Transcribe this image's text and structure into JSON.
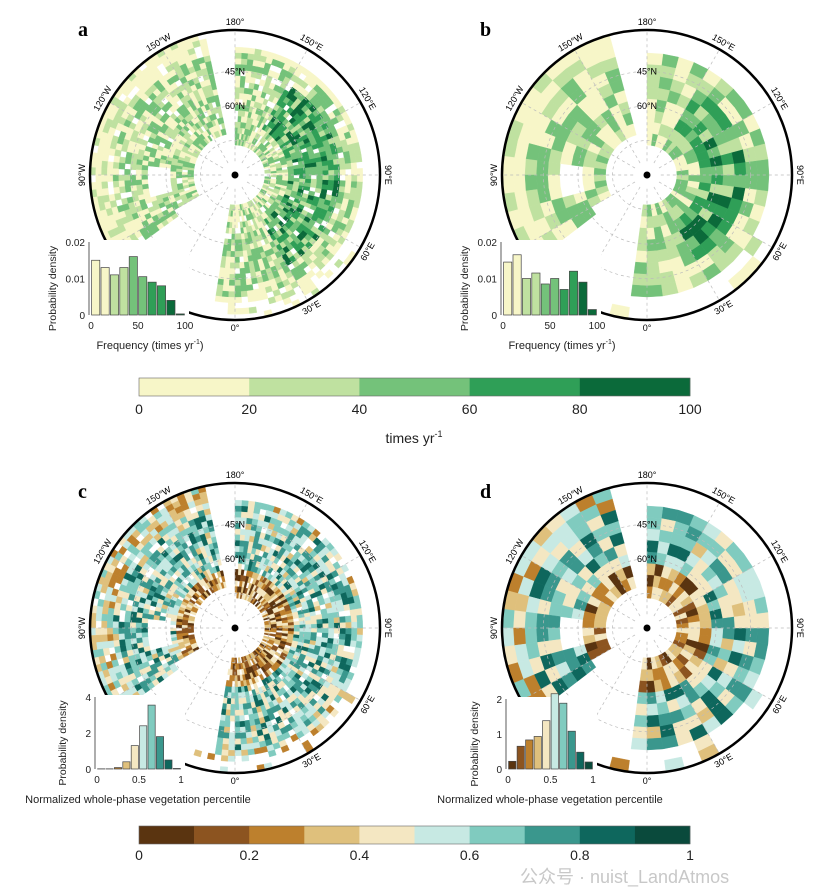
{
  "panels": {
    "a": "a",
    "b": "b",
    "c": "c",
    "d": "d"
  },
  "map_labels": {
    "lon": [
      "180°",
      "150°W",
      "150°E",
      "120°W",
      "120°E",
      "90°W",
      "90°E",
      "60°E",
      "30°E",
      "0°"
    ],
    "lat": [
      "45°N",
      "60°N"
    ]
  },
  "colors": {
    "green": [
      "#f7f6c8",
      "#bfe1a0",
      "#74c27a",
      "#2f9f57",
      "#0b6a3a"
    ],
    "brbg": [
      "#5a3410",
      "#8c5420",
      "#bd802d",
      "#dfc07c",
      "#f4e7c2",
      "#c7e9e3",
      "#80cbbf",
      "#3a978d",
      "#0e675d",
      "#0a4a3c"
    ]
  },
  "colorbar1": {
    "ticks": [
      "0",
      "20",
      "40",
      "60",
      "80",
      "100"
    ],
    "label": "times yr",
    "label_sup": "-1"
  },
  "colorbar2": {
    "ticks": [
      "0",
      "0.2",
      "0.4",
      "0.6",
      "0.8",
      "1"
    ]
  },
  "watermark": "公众号 · nuist_LandAtmos",
  "chart_data": [
    {
      "panel": "a",
      "type": "bar",
      "xlabel": "Frequency (times yr",
      "xlabel_sup": "-1",
      "xlabel_end": ")",
      "ylabel": "Probability density",
      "xticks": [
        "0",
        "50",
        "100"
      ],
      "yticks": [
        "0",
        "0.01",
        "0.02"
      ],
      "xlim": [
        0,
        100
      ],
      "ylim": [
        0,
        0.02
      ],
      "bin_width": 10,
      "bin_starts": [
        0,
        10,
        20,
        30,
        40,
        50,
        60,
        70,
        80,
        90
      ],
      "values": [
        0.015,
        0.013,
        0.011,
        0.013,
        0.016,
        0.0105,
        0.009,
        0.008,
        0.004,
        0.0003
      ]
    },
    {
      "panel": "b",
      "type": "bar",
      "xlabel": "Frequency (times yr",
      "xlabel_sup": "-1",
      "xlabel_end": ")",
      "ylabel": "Probability density",
      "xticks": [
        "0",
        "50",
        "100"
      ],
      "yticks": [
        "0",
        "0.01",
        "0.02"
      ],
      "xlim": [
        0,
        100
      ],
      "ylim": [
        0,
        0.02
      ],
      "bin_width": 10,
      "bin_starts": [
        0,
        10,
        20,
        30,
        40,
        50,
        60,
        70,
        80,
        90
      ],
      "values": [
        0.0145,
        0.0165,
        0.01,
        0.0115,
        0.0085,
        0.01,
        0.007,
        0.012,
        0.009,
        0.0015
      ]
    },
    {
      "panel": "c",
      "type": "bar",
      "xlabel": "Normalized whole-phase vegetation percentile",
      "ylabel": "Probability density",
      "xticks": [
        "0",
        "0.5",
        "1"
      ],
      "yticks": [
        "0",
        "2",
        "4"
      ],
      "xlim": [
        0,
        1
      ],
      "ylim": [
        0,
        4
      ],
      "bin_width": 0.1,
      "bin_starts": [
        0,
        0.1,
        0.2,
        0.3,
        0.4,
        0.5,
        0.6,
        0.7,
        0.8,
        0.9
      ],
      "values": [
        0.01,
        0.01,
        0.08,
        0.4,
        1.3,
        2.4,
        3.55,
        1.8,
        0.5,
        0.03
      ]
    },
    {
      "panel": "d",
      "type": "bar",
      "xlabel": "Normalized whole-phase vegetation percentile",
      "ylabel": "Probability density",
      "xticks": [
        "0",
        "0.5",
        "1"
      ],
      "yticks": [
        "0",
        "1",
        "2"
      ],
      "xlim": [
        0,
        1
      ],
      "ylim": [
        0,
        2
      ],
      "bin_width": 0.1,
      "bin_starts": [
        0,
        0.1,
        0.2,
        0.3,
        0.4,
        0.5,
        0.6,
        0.7,
        0.8,
        0.9
      ],
      "values": [
        0.22,
        0.65,
        0.83,
        0.93,
        1.38,
        2.15,
        1.88,
        1.08,
        0.48,
        0.2
      ]
    }
  ]
}
